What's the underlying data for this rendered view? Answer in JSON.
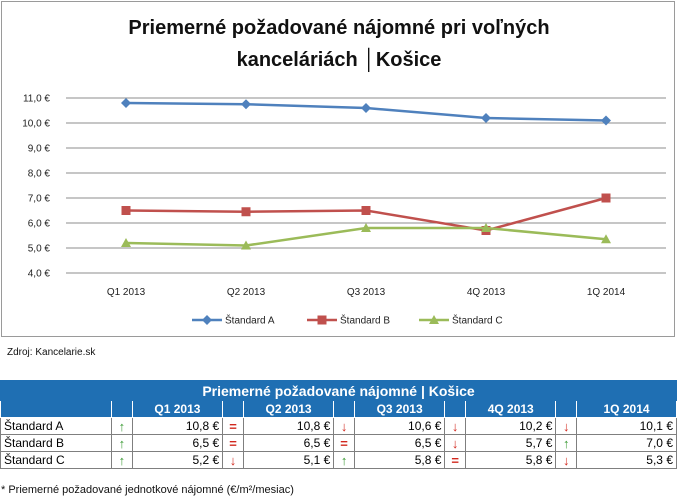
{
  "chart_data": {
    "type": "line",
    "title_line1": "Priemerné požadované nájomné pri voľných",
    "title_line2": "kanceláriách │Košice",
    "categories": [
      "Q1 2013",
      "Q2 2013",
      "Q3 2013",
      "4Q 2013",
      "1Q 2014"
    ],
    "y_ticks": [
      "4,0 €",
      "5,0 €",
      "6,0 €",
      "7,0 €",
      "8,0 €",
      "9,0 €",
      "10,0 €",
      "11,0 €"
    ],
    "ylim": [
      4,
      11
    ],
    "grid": true,
    "legend_position": "bottom",
    "series": [
      {
        "name": "Štandard A",
        "values": [
          10.8,
          10.75,
          10.6,
          10.2,
          10.1
        ],
        "color": "#4f81bd",
        "marker": "diamond"
      },
      {
        "name": "Štandard B",
        "values": [
          6.5,
          6.45,
          6.5,
          5.7,
          7.0
        ],
        "color": "#c0504d",
        "marker": "square"
      },
      {
        "name": "Štandard C",
        "values": [
          5.2,
          5.1,
          5.8,
          5.8,
          5.35
        ],
        "color": "#9bbb59",
        "marker": "triangle"
      }
    ]
  },
  "source": "Zdroj: Kancelarie.sk",
  "table": {
    "title": "Priemerné požadované nájomné | Košice",
    "columns": [
      "Q1 2013",
      "Q2 2013",
      "Q3 2013",
      "4Q 2013",
      "1Q 2014"
    ],
    "rows": [
      {
        "label": "Štandard A",
        "cells": [
          {
            "ind": "up",
            "val": "10,8 €"
          },
          {
            "ind": "eq",
            "val": "10,8 €"
          },
          {
            "ind": "down",
            "val": "10,6 €"
          },
          {
            "ind": "down",
            "val": "10,2 €"
          },
          {
            "ind": "down",
            "val": "10,1 €"
          }
        ]
      },
      {
        "label": "Štandard B",
        "cells": [
          {
            "ind": "up",
            "val": "6,5 €"
          },
          {
            "ind": "eq",
            "val": "6,5 €"
          },
          {
            "ind": "eq",
            "val": "6,5 €"
          },
          {
            "ind": "down",
            "val": "5,7 €"
          },
          {
            "ind": "up",
            "val": "7,0 €"
          }
        ]
      },
      {
        "label": "Štandard C",
        "cells": [
          {
            "ind": "up",
            "val": "5,2 €"
          },
          {
            "ind": "down",
            "val": "5,1 €"
          },
          {
            "ind": "up",
            "val": "5,8 €"
          },
          {
            "ind": "eq",
            "val": "5,8 €"
          },
          {
            "ind": "down",
            "val": "5,3 €"
          }
        ]
      }
    ],
    "footnote": "* Priemerné požadované jednotkové nájomné (€/m²/mesiac)"
  }
}
